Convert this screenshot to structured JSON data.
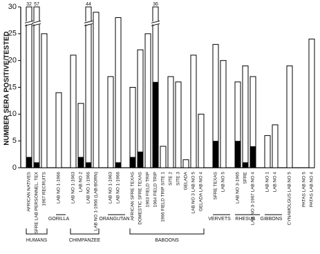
{
  "chart_data": {
    "type": "bar",
    "y_label": "NUMBER SERA POSITIVE/TESTED",
    "ylim": [
      0,
      30
    ],
    "yticks": [
      0,
      5,
      10,
      15,
      20,
      25,
      30
    ],
    "tested_color": "#ffffff",
    "positive_color": "#000000",
    "groups": [
      {
        "label": "HUMANS",
        "bracket": true,
        "categories": [
          "AFRICAN NATIVES",
          "SFRE LAB PERSONNEL, TEX",
          "1967 RECRUITS"
        ],
        "tested": [
          32,
          57,
          25
        ],
        "positive": [
          2,
          1,
          0
        ]
      },
      {
        "label": "GORILLA",
        "bracket": false,
        "categories": [
          "LAB NO 1-1966"
        ],
        "tested": [
          14
        ],
        "positive": [
          0
        ]
      },
      {
        "label": "CHIMPANZEE",
        "bracket": true,
        "categories": [
          "LAB NO 1-1963",
          "LAB NO 2",
          "LAB NO 1-1966",
          "LAB NO 1-1966 (LAB-BORN)"
        ],
        "tested": [
          21,
          12,
          44,
          29
        ],
        "positive": [
          0,
          2,
          1,
          0
        ]
      },
      {
        "label": "ORANGUTAN",
        "bracket": false,
        "categories": [
          "LAB NO 1-1963",
          "LAB NO 1-1966"
        ],
        "tested": [
          17,
          28
        ],
        "positive": [
          0,
          1
        ]
      },
      {
        "label": "BABOONS",
        "bracket": true,
        "categories": [
          "AFRICAN SFRE TEXAS",
          "DOMESTIC SFRE TEXAS",
          "1963 FIELD TRIP",
          "1964 FIELD TRIP",
          "1966 FIELD TRIP SITE 1",
          "SITE 2",
          "SITE 3",
          "GELADA",
          "LAB NO 3 LAB NO 5",
          "GELADA LAB NO 4"
        ],
        "tested": [
          15,
          22,
          25,
          36,
          4,
          17,
          16,
          1.5,
          21,
          10
        ],
        "positive": [
          2,
          3,
          0,
          16,
          0,
          0,
          0,
          0,
          0,
          0
        ]
      },
      {
        "label": "VERVETS",
        "bracket": false,
        "categories": [
          "SFRE TEXAS",
          "LAB NO 5"
        ],
        "tested": [
          23,
          20
        ],
        "positive": [
          5,
          0
        ]
      },
      {
        "label": "RHESUS",
        "bracket": false,
        "categories": [
          "LAB NO 3-1965",
          "SFRE",
          "LAB NO 3-1967 LAB NO 4"
        ],
        "tested": [
          16,
          19,
          17
        ],
        "positive": [
          5,
          1,
          4
        ]
      },
      {
        "label": "GIBBONS",
        "bracket": false,
        "categories": [
          "LAB NO 1",
          "LAB NO 4"
        ],
        "tested": [
          6,
          8
        ],
        "positive": [
          0,
          0
        ]
      },
      {
        "bracket": false,
        "categories": [
          "CYNAMOLGUS LAB NO 5"
        ],
        "tested": [
          19
        ],
        "positive": [
          0
        ]
      },
      {
        "bracket": false,
        "categories": [
          "PATAS LAB NO 5",
          "PATAS LAB NO 4"
        ],
        "tested": [
          null,
          24
        ],
        "positive": [
          null,
          0
        ]
      }
    ]
  }
}
